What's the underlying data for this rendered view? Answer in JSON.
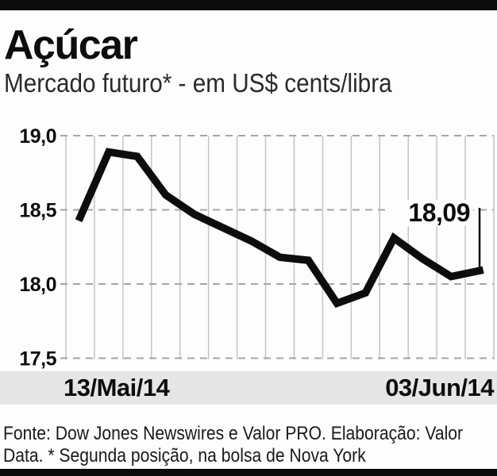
{
  "header": {
    "title": "Açúcar",
    "subtitle": "Mercado futuro* - em US$ cents/libra"
  },
  "chart_data": {
    "type": "line",
    "title": "Açúcar",
    "subtitle": "Mercado futuro* - em US$ cents/libra",
    "unit": "US$ cents/libra",
    "x_start_label": "13/Mai/14",
    "x_end_label": "03/Jun/14",
    "values": [
      18.45,
      18.89,
      18.86,
      18.6,
      18.47,
      18.38,
      18.29,
      18.18,
      18.16,
      17.87,
      17.94,
      18.31,
      18.17,
      18.05,
      18.09
    ],
    "last_value": 18.09,
    "last_value_label": "18,09",
    "y_ticks": [
      19.0,
      18.5,
      18.0,
      17.5
    ],
    "y_tick_labels": [
      "19,0",
      "18,5",
      "18,0",
      "17,5"
    ],
    "ylim": [
      17.5,
      19.0
    ],
    "grid": "vertical-solid-and-horizontal-dashed",
    "legend": "none",
    "colors": {
      "line": "#0d0d0d",
      "v_grid": "#c4c4c4",
      "h_grid_dashed": "#a5a5a5",
      "axis_band_bg": "#e6e6e6",
      "bar": "#0b0b0b",
      "text": "#0d0d0d"
    }
  },
  "footer": {
    "line1": "Fonte: Dow Jones Newswires e Valor PRO. Elaboração: Valor",
    "line2": "Data. * Segunda posição, na bolsa de Nova York"
  }
}
